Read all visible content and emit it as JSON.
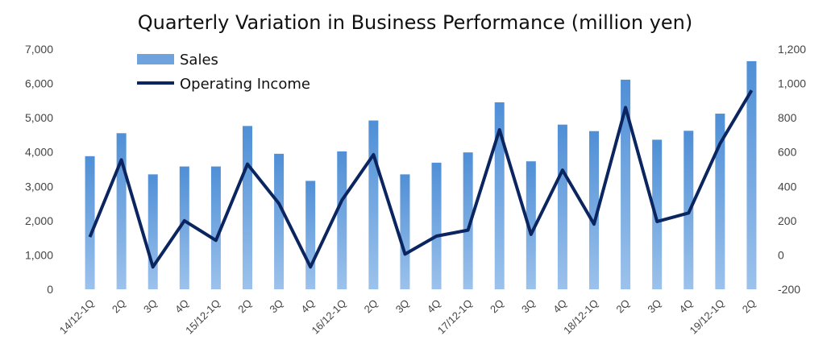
{
  "chart_data": {
    "type": "bar+line",
    "title": "Quarterly Variation in Business Performance (million yen)",
    "categories": [
      "14/12-1Q",
      "2Q",
      "3Q",
      "4Q",
      "15/12-1Q",
      "2Q",
      "3Q",
      "4Q",
      "16/12-1Q",
      "2Q",
      "3Q",
      "4Q",
      "17/12-1Q",
      "2Q",
      "3Q",
      "4Q",
      "18/12-1Q",
      "2Q",
      "3Q",
      "4Q",
      "19/12-1Q",
      "2Q"
    ],
    "series": [
      {
        "name": "Sales",
        "type": "bar",
        "axis": "left",
        "color": "#5b9bd5",
        "values": [
          3880,
          4550,
          3350,
          3580,
          3580,
          4760,
          3950,
          3160,
          4020,
          4920,
          3350,
          3690,
          3990,
          5450,
          3730,
          4800,
          4610,
          6110,
          4360,
          4620,
          5120,
          6650
        ]
      },
      {
        "name": "Operating Income",
        "type": "line",
        "axis": "right",
        "color": "#0b2560",
        "values": [
          105,
          555,
          -70,
          200,
          85,
          530,
          300,
          -70,
          320,
          585,
          5,
          110,
          145,
          730,
          120,
          495,
          180,
          860,
          195,
          245,
          650,
          960
        ]
      }
    ],
    "y_left": {
      "min": 0,
      "max": 7000,
      "step": 1000,
      "tick_labels": [
        "0",
        "1,000",
        "2,000",
        "3,000",
        "4,000",
        "5,000",
        "6,000",
        "7,000"
      ]
    },
    "y_right": {
      "min": -200,
      "max": 1200,
      "step": 200,
      "tick_labels": [
        "-200",
        "0",
        "200",
        "400",
        "600",
        "800",
        "1,000",
        "1,200"
      ],
      "negative_color": "#e00000"
    },
    "grid": false,
    "legend": {
      "position": "top-left"
    }
  }
}
